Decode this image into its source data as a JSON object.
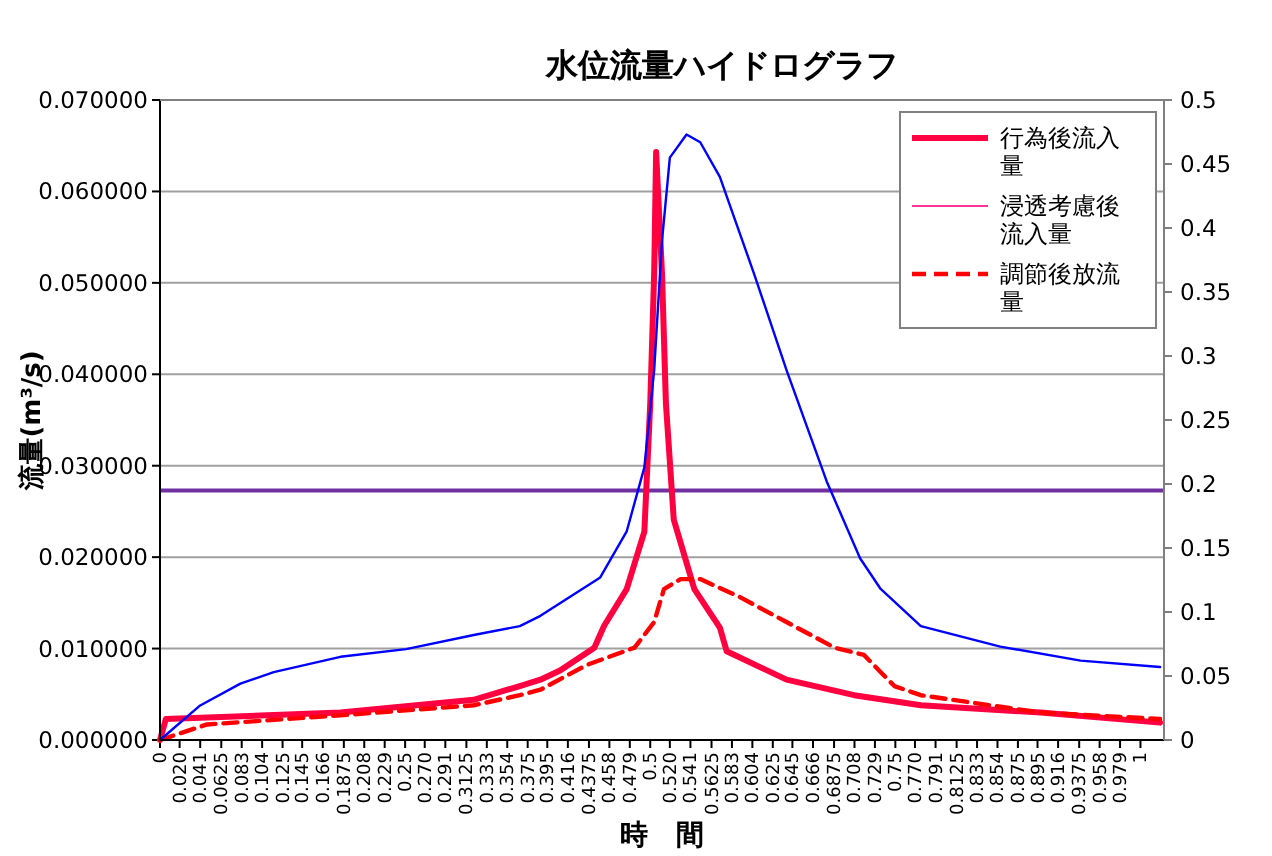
{
  "chart_data": {
    "type": "line",
    "title": "水位流量ハイドログラフ",
    "xlabel": "時　間",
    "ylabel": "流量(m³/s)",
    "xlim": [
      0,
      1.024
    ],
    "xticks": [
      {
        "value": 0,
        "label": "0"
      },
      {
        "value": 0.02,
        "label": "0.020"
      },
      {
        "value": 0.041,
        "label": "0.041"
      },
      {
        "value": 0.0625,
        "label": "0.0625"
      },
      {
        "value": 0.08333,
        "label": "0.083"
      },
      {
        "value": 0.10417,
        "label": "0.104"
      },
      {
        "value": 0.125,
        "label": "0.125"
      },
      {
        "value": 0.145,
        "label": "0.145"
      },
      {
        "value": 0.166,
        "label": "0.166"
      },
      {
        "value": 0.1875,
        "label": "0.1875"
      },
      {
        "value": 0.20833,
        "label": "0.208"
      },
      {
        "value": 0.22917,
        "label": "0.229"
      },
      {
        "value": 0.25,
        "label": "0.25"
      },
      {
        "value": 0.27,
        "label": "0.270"
      },
      {
        "value": 0.291,
        "label": "0.291"
      },
      {
        "value": 0.3125,
        "label": "0.3125"
      },
      {
        "value": 0.33333,
        "label": "0.333"
      },
      {
        "value": 0.35417,
        "label": "0.354"
      },
      {
        "value": 0.375,
        "label": "0.375"
      },
      {
        "value": 0.395,
        "label": "0.395"
      },
      {
        "value": 0.416,
        "label": "0.416"
      },
      {
        "value": 0.4375,
        "label": "0.4375"
      },
      {
        "value": 0.45833,
        "label": "0.458"
      },
      {
        "value": 0.47917,
        "label": "0.479"
      },
      {
        "value": 0.5,
        "label": "0.5"
      },
      {
        "value": 0.52,
        "label": "0.520"
      },
      {
        "value": 0.541,
        "label": "0.541"
      },
      {
        "value": 0.5625,
        "label": "0.5625"
      },
      {
        "value": 0.58333,
        "label": "0.583"
      },
      {
        "value": 0.60417,
        "label": "0.604"
      },
      {
        "value": 0.625,
        "label": "0.625"
      },
      {
        "value": 0.645,
        "label": "0.645"
      },
      {
        "value": 0.666,
        "label": "0.666"
      },
      {
        "value": 0.6875,
        "label": "0.6875"
      },
      {
        "value": 0.70833,
        "label": "0.708"
      },
      {
        "value": 0.72917,
        "label": "0.729"
      },
      {
        "value": 0.75,
        "label": "0.75"
      },
      {
        "value": 0.77,
        "label": "0.770"
      },
      {
        "value": 0.791,
        "label": "0.791"
      },
      {
        "value": 0.8125,
        "label": "0.8125"
      },
      {
        "value": 0.83333,
        "label": "0.833"
      },
      {
        "value": 0.85417,
        "label": "0.854"
      },
      {
        "value": 0.875,
        "label": "0.875"
      },
      {
        "value": 0.895,
        "label": "0.895"
      },
      {
        "value": 0.916,
        "label": "0.916"
      },
      {
        "value": 0.9375,
        "label": "0.9375"
      },
      {
        "value": 0.95833,
        "label": "0.958"
      },
      {
        "value": 0.97917,
        "label": "0.979"
      },
      {
        "value": 1,
        "label": "1"
      }
    ],
    "ylim": [
      0,
      0.07
    ],
    "yticks": [
      {
        "value": 0,
        "label": "0.000000"
      },
      {
        "value": 0.01,
        "label": "0.010000"
      },
      {
        "value": 0.02,
        "label": "0.020000"
      },
      {
        "value": 0.03,
        "label": "0.030000"
      },
      {
        "value": 0.04,
        "label": "0.040000"
      },
      {
        "value": 0.05,
        "label": "0.050000"
      },
      {
        "value": 0.06,
        "label": "0.060000"
      },
      {
        "value": 0.07,
        "label": "0.070000"
      }
    ],
    "y2lim": [
      0,
      0.5
    ],
    "y2ticks": [
      0,
      0.05,
      0.1,
      0.15,
      0.2,
      0.25,
      0.3,
      0.35,
      0.4,
      0.45,
      0.5
    ],
    "grid": "y",
    "legend": "top right",
    "ref_lines": [
      {
        "axis": "y",
        "value": 0.0273,
        "color": "#7030a0"
      }
    ],
    "series": [
      {
        "name": "行為後流入量",
        "color": "#ff0040",
        "line_style": "solid",
        "x": [
          0,
          0.006,
          0.184,
          0.32,
          0.367,
          0.388,
          0.408,
          0.443,
          0.453,
          0.476,
          0.494,
          0.5,
          0.504,
          0.506,
          0.512,
          0.516,
          0.524,
          0.545,
          0.571,
          0.578,
          0.639,
          0.708,
          0.776,
          0.898,
          1.02
        ],
        "values": [
          0,
          0.0023,
          0.003,
          0.0044,
          0.0059,
          0.0066,
          0.0076,
          0.0101,
          0.0125,
          0.0165,
          0.0228,
          0.0368,
          0.051,
          0.0643,
          0.051,
          0.0368,
          0.0241,
          0.0165,
          0.0123,
          0.0097,
          0.0066,
          0.0049,
          0.0038,
          0.003,
          0.0019
        ]
      },
      {
        "name": "浸透考慮後流入量",
        "color": "#ff3399",
        "line_style": "solid"
      },
      {
        "name": "調節後放流量",
        "color": "#ff0000",
        "line_style": "dashed",
        "x": [
          0,
          0.048,
          0.184,
          0.32,
          0.367,
          0.388,
          0.435,
          0.484,
          0.504,
          0.514,
          0.531,
          0.551,
          0.592,
          0.639,
          0.688,
          0.718,
          0.749,
          0.776,
          0.898,
          1.02
        ],
        "values": [
          0,
          0.0017,
          0.0027,
          0.0038,
          0.0049,
          0.0055,
          0.0082,
          0.0101,
          0.0129,
          0.0165,
          0.0176,
          0.0176,
          0.0156,
          0.0129,
          0.0101,
          0.0093,
          0.0059,
          0.0049,
          0.003,
          0.0023
        ]
      },
      {
        "color": "#0000ff",
        "line_style": "solid",
        "axis": "y2",
        "x": [
          0,
          0.041,
          0.082,
          0.116,
          0.184,
          0.251,
          0.32,
          0.367,
          0.388,
          0.449,
          0.476,
          0.494,
          0.504,
          0.512,
          0.52,
          0.537,
          0.551,
          0.571,
          0.606,
          0.639,
          0.68,
          0.714,
          0.735,
          0.776,
          0.857,
          0.939,
          1.02
        ],
        "values": [
          0,
          0.027,
          0.044,
          0.053,
          0.065,
          0.071,
          0.082,
          0.089,
          0.097,
          0.127,
          0.163,
          0.213,
          0.289,
          0.39,
          0.455,
          0.473,
          0.467,
          0.44,
          0.364,
          0.289,
          0.202,
          0.142,
          0.118,
          0.089,
          0.073,
          0.062,
          0.057
        ]
      }
    ]
  }
}
